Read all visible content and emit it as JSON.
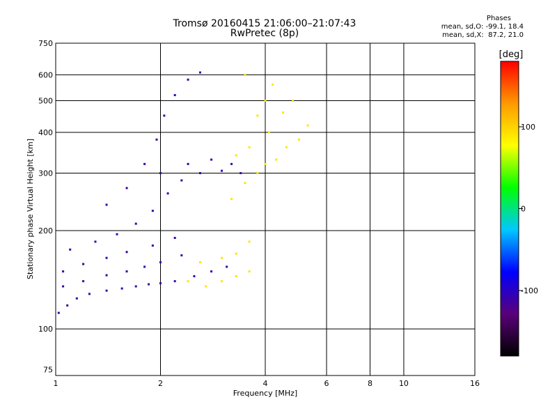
{
  "header": {
    "title_line1": "Tromsø 20160415 21:06:00–21:07:43",
    "title_line2": "RwPretec (8p)",
    "stats_title": "Phases",
    "stats_O": "mean, sd,O: -99.1, 18.4",
    "stats_X": "mean, sd,X:  87.2, 21.0"
  },
  "colors": {
    "grid": "#000000",
    "colorbar_stops": [
      "#000000",
      "#5a007a",
      "#0000ff",
      "#00c8ff",
      "#00ff00",
      "#ffff00",
      "#ff9900",
      "#ff0000"
    ]
  },
  "chart_data": {
    "type": "scatter",
    "xlabel": "Frequency [MHz]",
    "ylabel": "Stationary phase Virtual Height [km]",
    "x_scale": "log",
    "y_scale": "log",
    "xlim": [
      1,
      16
    ],
    "ylim": [
      72,
      750
    ],
    "x_ticks": [
      1,
      2,
      4,
      6,
      8,
      10,
      16
    ],
    "x_tick_labels": [
      "1",
      "2",
      "4",
      "6",
      "8",
      "10",
      "16"
    ],
    "y_ticks": [
      75,
      100,
      200,
      300,
      400,
      500,
      600,
      750
    ],
    "y_tick_labels": [
      "75",
      "100",
      "200",
      "300",
      "400",
      "500",
      "600",
      "750"
    ],
    "grid": true,
    "colorbar": {
      "label": "[deg]",
      "range": [
        -180,
        180
      ],
      "ticks": [
        100,
        0,
        -100
      ],
      "tick_labels": [
        "100",
        "0",
        "-100"
      ]
    },
    "traces": [
      {
        "name": "o",
        "phase": -110,
        "points": [
          [
            1.02,
            112
          ],
          [
            1.08,
            118
          ],
          [
            1.15,
            124
          ],
          [
            1.25,
            128
          ],
          [
            1.4,
            131
          ],
          [
            1.55,
            133
          ],
          [
            1.7,
            135
          ],
          [
            1.85,
            137
          ],
          [
            2.0,
            138
          ],
          [
            2.2,
            140
          ],
          [
            2.5,
            145
          ],
          [
            2.8,
            150
          ],
          [
            3.1,
            155
          ],
          [
            1.05,
            135
          ],
          [
            1.2,
            140
          ],
          [
            1.4,
            146
          ],
          [
            1.6,
            150
          ],
          [
            1.8,
            155
          ],
          [
            2.0,
            160
          ],
          [
            2.3,
            168
          ],
          [
            1.05,
            150
          ],
          [
            1.2,
            158
          ],
          [
            1.4,
            165
          ],
          [
            1.6,
            172
          ],
          [
            1.9,
            180
          ],
          [
            2.2,
            190
          ],
          [
            1.1,
            175
          ],
          [
            1.3,
            185
          ],
          [
            1.5,
            195
          ],
          [
            1.7,
            210
          ],
          [
            1.9,
            230
          ],
          [
            2.1,
            260
          ],
          [
            2.3,
            285
          ],
          [
            2.6,
            300
          ],
          [
            3.0,
            305
          ],
          [
            3.4,
            300
          ],
          [
            1.4,
            240
          ],
          [
            1.6,
            270
          ],
          [
            1.8,
            320
          ],
          [
            1.95,
            380
          ],
          [
            2.05,
            450
          ],
          [
            2.2,
            520
          ],
          [
            2.4,
            580
          ],
          [
            2.6,
            610
          ],
          [
            2.0,
            300
          ],
          [
            2.4,
            320
          ],
          [
            2.8,
            330
          ],
          [
            3.2,
            320
          ]
        ]
      },
      {
        "name": "x",
        "phase": 90,
        "points": [
          [
            2.4,
            140
          ],
          [
            2.7,
            135
          ],
          [
            3.0,
            140
          ],
          [
            3.3,
            145
          ],
          [
            3.6,
            150
          ],
          [
            2.6,
            160
          ],
          [
            3.0,
            165
          ],
          [
            3.3,
            170
          ],
          [
            3.6,
            185
          ],
          [
            3.2,
            250
          ],
          [
            3.5,
            280
          ],
          [
            3.8,
            300
          ],
          [
            4.0,
            320
          ],
          [
            4.3,
            330
          ],
          [
            4.6,
            360
          ],
          [
            5.0,
            380
          ],
          [
            5.3,
            420
          ],
          [
            3.8,
            450
          ],
          [
            4.0,
            500
          ],
          [
            4.2,
            560
          ],
          [
            3.5,
            600
          ],
          [
            3.3,
            340
          ],
          [
            3.6,
            360
          ],
          [
            4.1,
            400
          ],
          [
            4.5,
            460
          ],
          [
            4.8,
            500
          ]
        ]
      }
    ]
  }
}
